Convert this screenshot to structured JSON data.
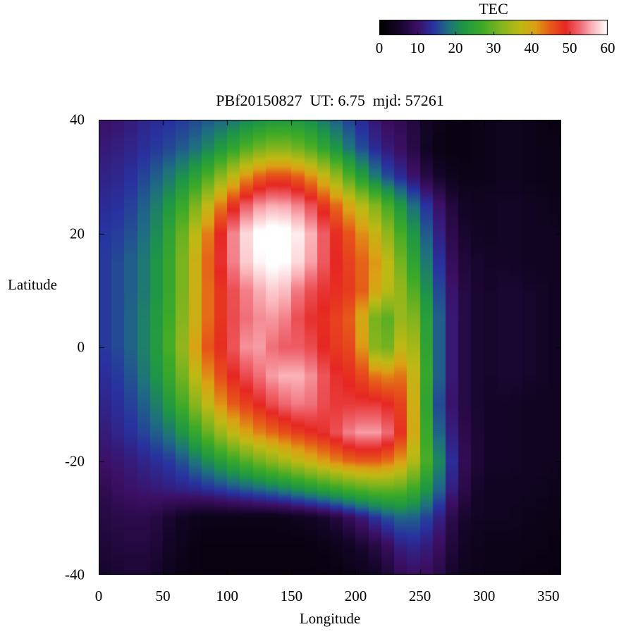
{
  "chart_data": {
    "type": "heatmap",
    "title": "PBf20150827  UT: 6.75  mjd: 57261",
    "xlabel": "Longitude",
    "ylabel": "Latitude",
    "colorbar_label": "TEC",
    "xlim": [
      0,
      360
    ],
    "ylim": [
      -40,
      40
    ],
    "zlim": [
      0,
      60
    ],
    "x_ticks": [
      0,
      50,
      100,
      150,
      200,
      250,
      300,
      350
    ],
    "y_ticks": [
      40,
      20,
      0,
      -20,
      -40
    ],
    "colorbar_ticks": [
      0,
      10,
      20,
      30,
      40,
      50,
      60
    ],
    "grid_lon": [
      0,
      20,
      40,
      60,
      80,
      100,
      120,
      140,
      160,
      180,
      200,
      220,
      240,
      260,
      280,
      300,
      320,
      340,
      360
    ],
    "grid_lat": [
      40,
      35,
      30,
      25,
      20,
      15,
      10,
      5,
      0,
      -5,
      -10,
      -15,
      -20,
      -25,
      -30,
      -35,
      -40
    ],
    "tec_values": [
      [
        10,
        11,
        13,
        14,
        16,
        18,
        21,
        23,
        22,
        18,
        14,
        10,
        8,
        4,
        2,
        3,
        4,
        3,
        2
      ],
      [
        11,
        12,
        14,
        16,
        19,
        24,
        30,
        33,
        30,
        24,
        17,
        12,
        9,
        3,
        2,
        3,
        4,
        3,
        3
      ],
      [
        12,
        13,
        16,
        20,
        26,
        35,
        44,
        47,
        44,
        36,
        26,
        17,
        12,
        6,
        3,
        3,
        4,
        3,
        3
      ],
      [
        13,
        14,
        18,
        24,
        34,
        46,
        54,
        56,
        53,
        46,
        38,
        30,
        20,
        12,
        5,
        4,
        5,
        4,
        3
      ],
      [
        14,
        15,
        19,
        27,
        40,
        52,
        60,
        62,
        58,
        50,
        44,
        36,
        25,
        14,
        6,
        4,
        5,
        4,
        4
      ],
      [
        14,
        16,
        20,
        28,
        42,
        52,
        59,
        61,
        57,
        50,
        46,
        40,
        28,
        16,
        7,
        5,
        5,
        4,
        4
      ],
      [
        14,
        16,
        20,
        28,
        42,
        50,
        55,
        58,
        52,
        49,
        47,
        38,
        32,
        18,
        8,
        5,
        6,
        5,
        4
      ],
      [
        14,
        16,
        21,
        29,
        42,
        50,
        54,
        55,
        50,
        48,
        44,
        27,
        36,
        20,
        8,
        5,
        6,
        5,
        4
      ],
      [
        14,
        16,
        21,
        30,
        44,
        50,
        56,
        52,
        52,
        48,
        46,
        28,
        40,
        20,
        8,
        5,
        6,
        5,
        4
      ],
      [
        13,
        15,
        20,
        28,
        40,
        48,
        52,
        56,
        56,
        50,
        48,
        42,
        44,
        20,
        8,
        5,
        6,
        5,
        4
      ],
      [
        12,
        14,
        18,
        25,
        35,
        44,
        48,
        52,
        54,
        50,
        50,
        50,
        46,
        18,
        8,
        5,
        5,
        4,
        4
      ],
      [
        11,
        13,
        16,
        20,
        28,
        36,
        42,
        45,
        48,
        50,
        55,
        55,
        46,
        20,
        9,
        5,
        5,
        4,
        4
      ],
      [
        10,
        11,
        13,
        15,
        20,
        25,
        30,
        34,
        38,
        42,
        45,
        45,
        40,
        24,
        10,
        5,
        5,
        4,
        4
      ],
      [
        8,
        10,
        11,
        12,
        13,
        15,
        17,
        19,
        22,
        25,
        28,
        30,
        29,
        20,
        9,
        4,
        4,
        4,
        3
      ],
      [
        7,
        8,
        8,
        5,
        3,
        3,
        3,
        3,
        4,
        6,
        10,
        15,
        18,
        14,
        6,
        4,
        4,
        3,
        3
      ],
      [
        6,
        7,
        7,
        4,
        2,
        2,
        2,
        2,
        2,
        3,
        5,
        8,
        13,
        11,
        5,
        3,
        3,
        3,
        2
      ],
      [
        5,
        6,
        6,
        3,
        2,
        2,
        2,
        2,
        2,
        2,
        3,
        5,
        10,
        9,
        4,
        3,
        3,
        2,
        2
      ]
    ],
    "palette": [
      [
        0,
        "#000000"
      ],
      [
        5,
        "#140528"
      ],
      [
        10,
        "#3C0F64"
      ],
      [
        14,
        "#2832A0"
      ],
      [
        18,
        "#1E6E82"
      ],
      [
        22,
        "#1E9646"
      ],
      [
        27,
        "#3CAA28"
      ],
      [
        32,
        "#82B41E"
      ],
      [
        37,
        "#BEB914"
      ],
      [
        41,
        "#DCA014"
      ],
      [
        45,
        "#E65A19"
      ],
      [
        49,
        "#E62823"
      ],
      [
        53,
        "#F06E78"
      ],
      [
        56,
        "#FAB4B9"
      ],
      [
        60,
        "#FFFFFF"
      ]
    ],
    "background_color": "#FFFFFF",
    "text_color": "#000000",
    "legend_position": "top-right-colorbar",
    "grid_lines": false
  }
}
